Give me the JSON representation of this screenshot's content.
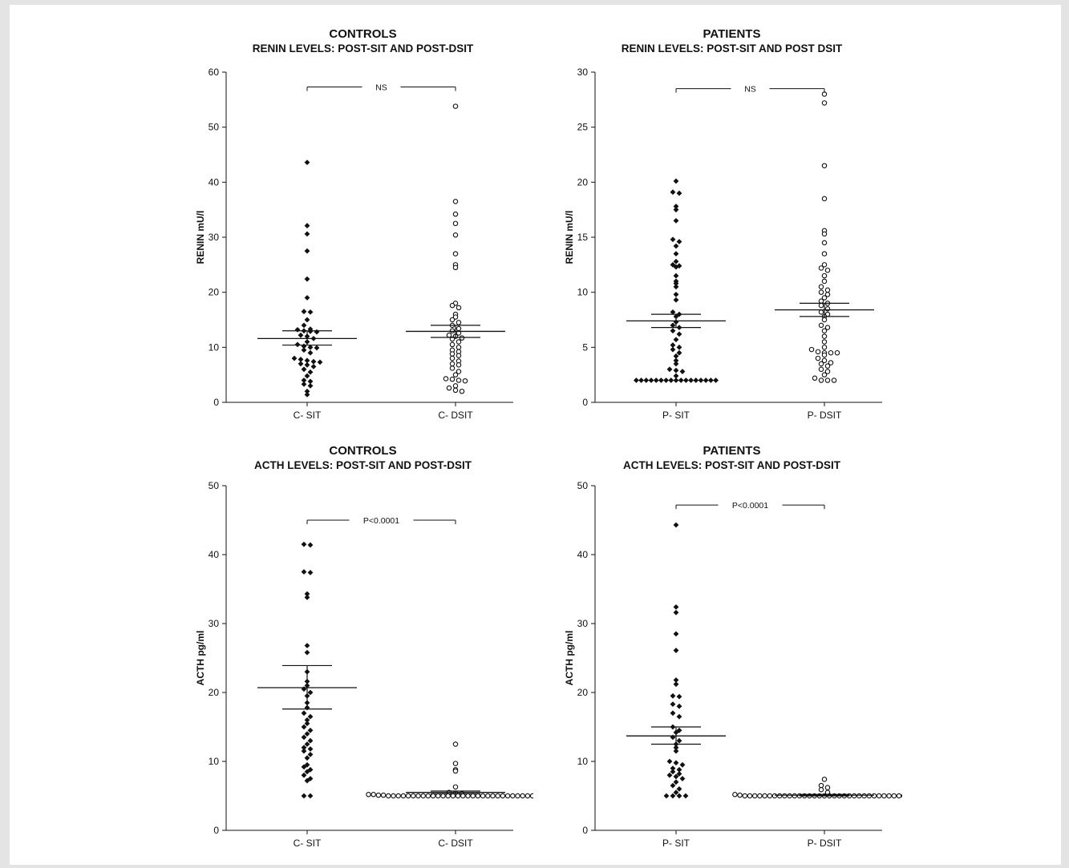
{
  "chart_data": [
    {
      "type": "scatter",
      "title": "CONTROLS",
      "subtitle": "RENIN LEVELS: POST-SIT AND POST-DSIT",
      "ylabel": "RENIN mU/l",
      "ylim": [
        0,
        60
      ],
      "yticks": [
        0,
        10,
        20,
        30,
        40,
        50,
        60
      ],
      "categories": [
        "C- SIT",
        "C- DSIT"
      ],
      "grid": false,
      "significance": {
        "label": "NS",
        "between": [
          0,
          1
        ],
        "y": 57.3
      },
      "series": [
        {
          "marker": "filled",
          "mean": 11.6,
          "sem_low": 10.4,
          "sem_high": 13.0,
          "values": [
            43.6,
            32.1,
            30.6,
            27.5,
            22.4,
            19.0,
            16.5,
            16.4,
            15.0,
            14.0,
            13.3,
            13.2,
            13.0,
            12.9,
            12.8,
            12.2,
            12.0,
            11.6,
            11.0,
            10.5,
            10.2,
            10.0,
            9.9,
            9.5,
            9.0,
            8.0,
            7.8,
            7.6,
            7.4,
            7.3,
            7.0,
            6.8,
            6.5,
            6.0,
            5.5,
            4.8,
            4.0,
            3.8,
            3.3,
            3.0,
            2.0,
            1.4
          ]
        },
        {
          "marker": "open",
          "mean": 12.9,
          "sem_low": 11.8,
          "sem_high": 14.0,
          "values": [
            53.8,
            36.5,
            34.2,
            32.5,
            30.4,
            27.0,
            25.0,
            24.5,
            18.0,
            17.6,
            17.2,
            16.0,
            15.5,
            15.0,
            14.5,
            14.0,
            13.4,
            13.0,
            12.6,
            12.2,
            12.0,
            11.7,
            11.5,
            11.0,
            10.5,
            10.0,
            9.5,
            9.2,
            8.8,
            8.5,
            8.0,
            7.5,
            7.0,
            6.8,
            6.2,
            5.6,
            5.0,
            4.3,
            4.2,
            4.0,
            3.9,
            3.0,
            2.6,
            2.2,
            2.0
          ]
        }
      ]
    },
    {
      "type": "scatter",
      "title": "PATIENTS",
      "subtitle": "RENIN LEVELS: POST-SIT AND POST DSIT",
      "ylabel": "RENIN mU/l",
      "ylim": [
        0,
        30
      ],
      "yticks": [
        0,
        5,
        10,
        15,
        20,
        25,
        30
      ],
      "categories": [
        "P- SIT",
        "P- DSIT"
      ],
      "grid": false,
      "significance": {
        "label": "NS",
        "between": [
          0,
          1
        ],
        "y": 28.5
      },
      "series": [
        {
          "marker": "filled",
          "mean": 7.4,
          "sem_low": 6.8,
          "sem_high": 8.0,
          "values": [
            20.1,
            19.1,
            19.0,
            17.8,
            17.5,
            16.5,
            14.8,
            14.6,
            14.2,
            13.5,
            12.8,
            12.5,
            12.4,
            12.3,
            11.5,
            11.0,
            10.8,
            10.5,
            9.8,
            9.3,
            8.2,
            8.0,
            7.8,
            7.3,
            7.0,
            6.8,
            6.5,
            6.2,
            5.7,
            5.2,
            5.0,
            4.8,
            4.5,
            4.2,
            3.8,
            3.5,
            3.0,
            2.9,
            2.8,
            2.4,
            2.0,
            2.0,
            2.0,
            2.0,
            2.0,
            2.0,
            2.0,
            2.0,
            2.0,
            2.0,
            2.0,
            2.0,
            2.0,
            2.0,
            2.0,
            2.0,
            2.0
          ]
        },
        {
          "marker": "open",
          "mean": 8.4,
          "sem_low": 7.8,
          "sem_high": 9.0,
          "values": [
            28.0,
            27.2,
            21.5,
            18.5,
            15.6,
            15.3,
            14.5,
            13.5,
            12.5,
            12.2,
            12.0,
            11.5,
            11.0,
            10.5,
            10.2,
            10.0,
            9.8,
            9.5,
            9.2,
            9.0,
            8.8,
            8.5,
            8.2,
            8.0,
            7.8,
            7.5,
            7.0,
            6.8,
            6.5,
            6.0,
            5.5,
            5.0,
            4.8,
            4.6,
            4.5,
            4.5,
            4.5,
            4.3,
            4.0,
            3.8,
            3.6,
            3.5,
            3.3,
            3.0,
            2.8,
            2.5,
            2.2,
            2.0,
            2.0,
            2.0
          ]
        }
      ]
    },
    {
      "type": "scatter",
      "title": "CONTROLS",
      "subtitle": "ACTH LEVELS: POST-SIT AND POST-DSIT",
      "ylabel": "ACTH pg/ml",
      "ylim": [
        0,
        50
      ],
      "yticks": [
        0,
        10,
        20,
        30,
        40,
        50
      ],
      "categories": [
        "C- SIT",
        "C- DSIT"
      ],
      "grid": false,
      "significance": {
        "label": "P<0.0001",
        "between": [
          0,
          1
        ],
        "y": 45.0
      },
      "series": [
        {
          "marker": "filled",
          "mean": 20.7,
          "sem_low": 17.6,
          "sem_high": 23.9,
          "values": [
            41.5,
            41.4,
            37.5,
            37.4,
            34.3,
            33.8,
            26.8,
            25.8,
            23.0,
            21.6,
            21.0,
            20.5,
            20.0,
            19.5,
            18.5,
            17.8,
            17.0,
            16.5,
            16.0,
            15.5,
            15.0,
            14.5,
            14.0,
            13.5,
            13.0,
            12.5,
            12.0,
            11.8,
            11.5,
            11.0,
            10.5,
            9.5,
            9.2,
            8.8,
            8.5,
            8.0,
            7.5,
            7.2,
            5.0,
            5.0
          ]
        },
        {
          "marker": "open",
          "mean": 5.5,
          "sem_low": 5.3,
          "sem_high": 5.7,
          "values": [
            12.5,
            9.7,
            8.8,
            8.6,
            6.3,
            5.5,
            5.4,
            5.3,
            5.2,
            5.2,
            5.1,
            5.1,
            5.0,
            5.0,
            5.0,
            5.0,
            5.0,
            5.0,
            5.0,
            5.0,
            5.0,
            5.0,
            5.0,
            5.0,
            5.0,
            5.0,
            5.0,
            5.0,
            5.0,
            5.0,
            5.0,
            5.0,
            5.0,
            5.0,
            5.0,
            5.0,
            5.0,
            5.0,
            5.0,
            5.0,
            5.0,
            5.0,
            5.0,
            5.0
          ]
        }
      ]
    },
    {
      "type": "scatter",
      "title": "PATIENTS",
      "subtitle": "ACTH LEVELS: POST-SIT AND POST-DSIT",
      "ylabel": "ACTH pg/ml",
      "ylim": [
        0,
        50
      ],
      "yticks": [
        0,
        10,
        20,
        30,
        40,
        50
      ],
      "categories": [
        "P- SIT",
        "P- DSIT"
      ],
      "grid": false,
      "significance": {
        "label": "P<0.0001",
        "between": [
          0,
          1
        ],
        "y": 47.2
      },
      "series": [
        {
          "marker": "filled",
          "mean": 13.7,
          "sem_low": 12.5,
          "sem_high": 15.0,
          "values": [
            44.3,
            32.4,
            31.6,
            28.5,
            26.1,
            21.8,
            21.2,
            19.5,
            19.4,
            18.3,
            18.0,
            17.0,
            16.5,
            15.0,
            14.5,
            14.2,
            13.5,
            13.0,
            12.5,
            12.0,
            11.5,
            10.0,
            9.8,
            9.5,
            9.0,
            8.8,
            8.5,
            8.2,
            8.0,
            7.8,
            7.5,
            7.0,
            6.5,
            6.0,
            5.5,
            5.0,
            5.0,
            5.0,
            5.0
          ]
        },
        {
          "marker": "open",
          "mean": 5.1,
          "sem_low": 5.0,
          "sem_high": 5.2,
          "values": [
            7.4,
            6.5,
            6.2,
            5.9,
            5.5,
            5.2,
            5.1,
            5.0,
            5.0,
            5.0,
            5.0,
            5.0,
            5.0,
            5.0,
            5.0,
            5.0,
            5.0,
            5.0,
            5.0,
            5.0,
            5.0,
            5.0,
            5.0,
            5.0,
            5.0,
            5.0,
            5.0,
            5.0,
            5.0,
            5.0,
            5.0,
            5.0,
            5.0,
            5.0,
            5.0,
            5.0,
            5.0,
            5.0,
            5.0,
            5.0,
            5.0,
            5.0
          ]
        }
      ]
    }
  ]
}
